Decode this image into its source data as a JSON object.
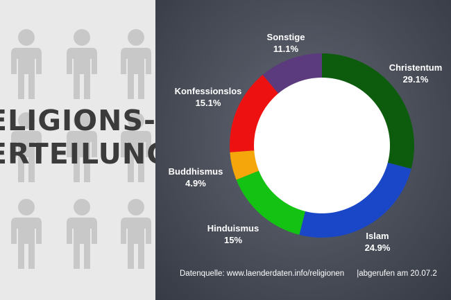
{
  "title": {
    "line1": "ELIGIONS-",
    "line2": "ERTEILUNG"
  },
  "colors": {
    "background_left": "#e9e9e9",
    "figure": "#c8c8c8",
    "title_text": "#3b3b3b"
  },
  "chart_data": {
    "type": "pie",
    "style": "donut",
    "slices": [
      {
        "label": "Christentum",
        "display": "29.1%",
        "value": 29.1,
        "color": "#0d5c0d"
      },
      {
        "label": "Islam",
        "display": "24.9%",
        "value": 24.9,
        "color": "#1a47c8"
      },
      {
        "label": "Hinduismus",
        "display": "15%",
        "value": 15.0,
        "color": "#14c214"
      },
      {
        "label": "Buddhismus",
        "display": "4.9%",
        "value": 4.9,
        "color": "#f5a60a"
      },
      {
        "label": "Konfessionslos",
        "display": "15.1%",
        "value": 15.1,
        "color": "#ee1111"
      },
      {
        "label": "Sonstige",
        "display": "11.1%",
        "value": 11.1,
        "color": "#5b3a7e"
      }
    ]
  },
  "footer": {
    "source": "Datenquelle: www.laenderdaten.info/religionen",
    "separator": "|",
    "retrieved": "abgerufen am 20.07.2"
  }
}
